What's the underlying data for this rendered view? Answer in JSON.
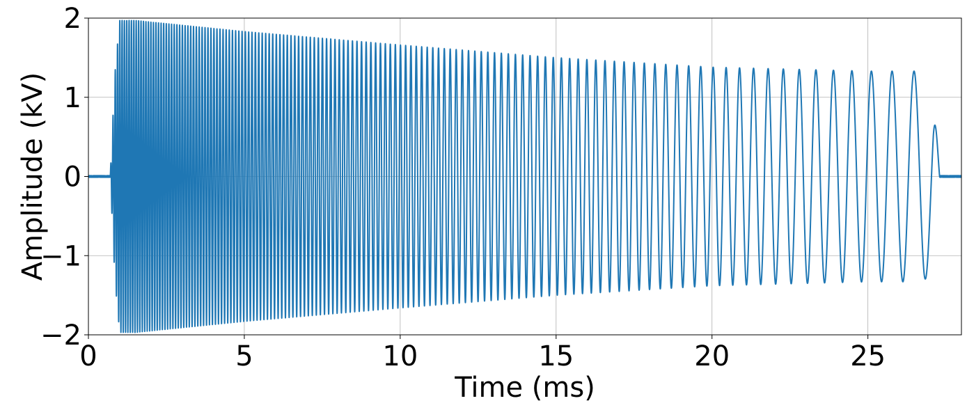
{
  "chart_data": {
    "type": "line",
    "title": "",
    "xlabel": "Time (ms)",
    "ylabel": "Amplitude (kV)",
    "xlim": [
      0,
      28
    ],
    "ylim": [
      -2,
      2
    ],
    "xticks": [
      0,
      5,
      10,
      15,
      20,
      25
    ],
    "yticks": [
      -2,
      -1,
      0,
      1,
      2
    ],
    "xtick_labels": [
      "0",
      "5",
      "10",
      "15",
      "20",
      "25"
    ],
    "ytick_labels": [
      "−2",
      "−1",
      "0",
      "1",
      "2"
    ],
    "grid": true,
    "legend": "none",
    "series": [
      {
        "color": "#1f77b4",
        "description_kind": "chirp",
        "signal_start_ms": 0.7,
        "signal_end_ms": 27.1,
        "envelope": {
          "t": [
            0.0,
            0.7,
            0.85,
            1.0,
            1.5,
            5,
            10,
            15,
            20,
            25,
            26.8,
            27.1,
            27.3,
            28.0
          ],
          "amplitude": [
            0.0,
            0.0,
            1.3,
            1.97,
            1.97,
            1.83,
            1.66,
            1.5,
            1.38,
            1.33,
            1.33,
            1.1,
            0.0,
            0.0
          ]
        },
        "frequency_khz_start": 14.0,
        "frequency_khz_end": 1.3
      }
    ]
  }
}
